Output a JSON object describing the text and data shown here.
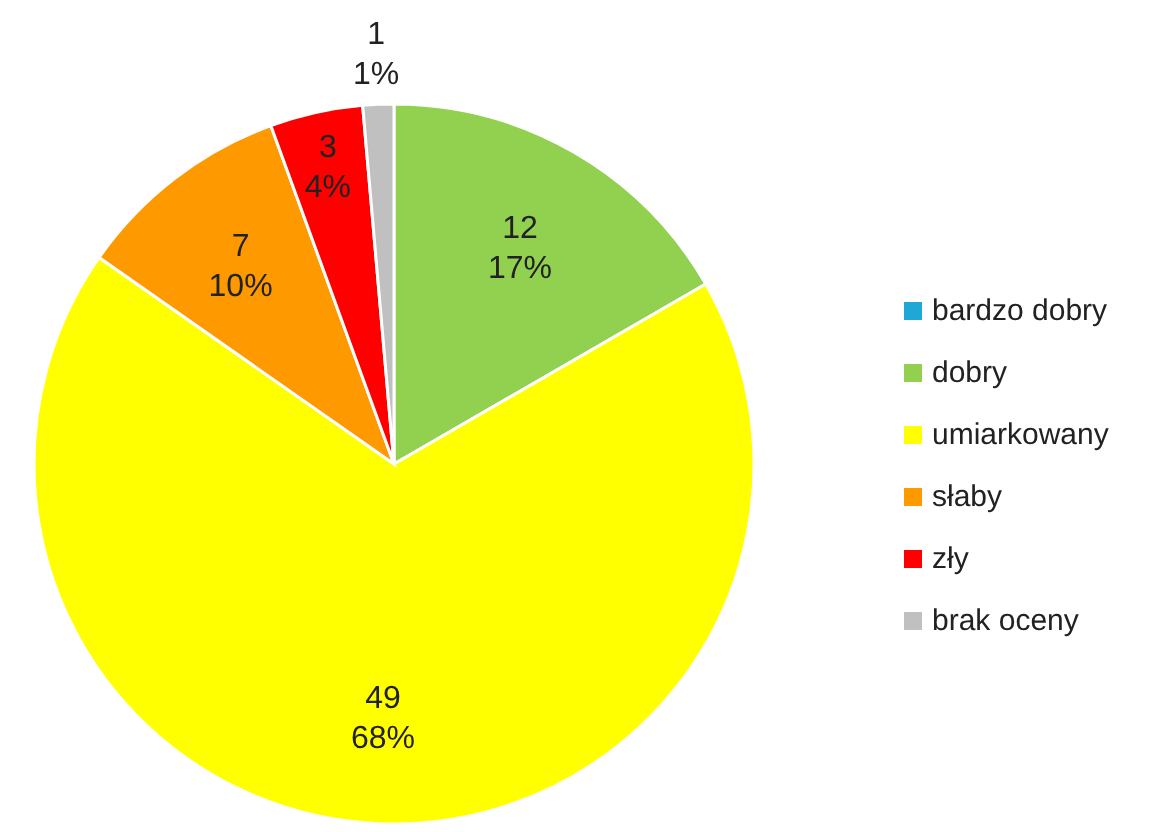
{
  "chart_data": {
    "type": "pie",
    "categories": [
      "bardzo dobry",
      "dobry",
      "umiarkowany",
      "słaby",
      "zły",
      "brak oceny"
    ],
    "values": [
      0,
      12,
      49,
      7,
      3,
      1
    ],
    "colors": [
      "#1fa7d6",
      "#92d050",
      "#ffff00",
      "#ff9900",
      "#ff0000",
      "#c0c0c0"
    ],
    "value_labels": [
      null,
      "12\n17%",
      "49\n68%",
      "7\n10%",
      "3\n4%",
      "1\n1%"
    ],
    "legend": "right"
  }
}
